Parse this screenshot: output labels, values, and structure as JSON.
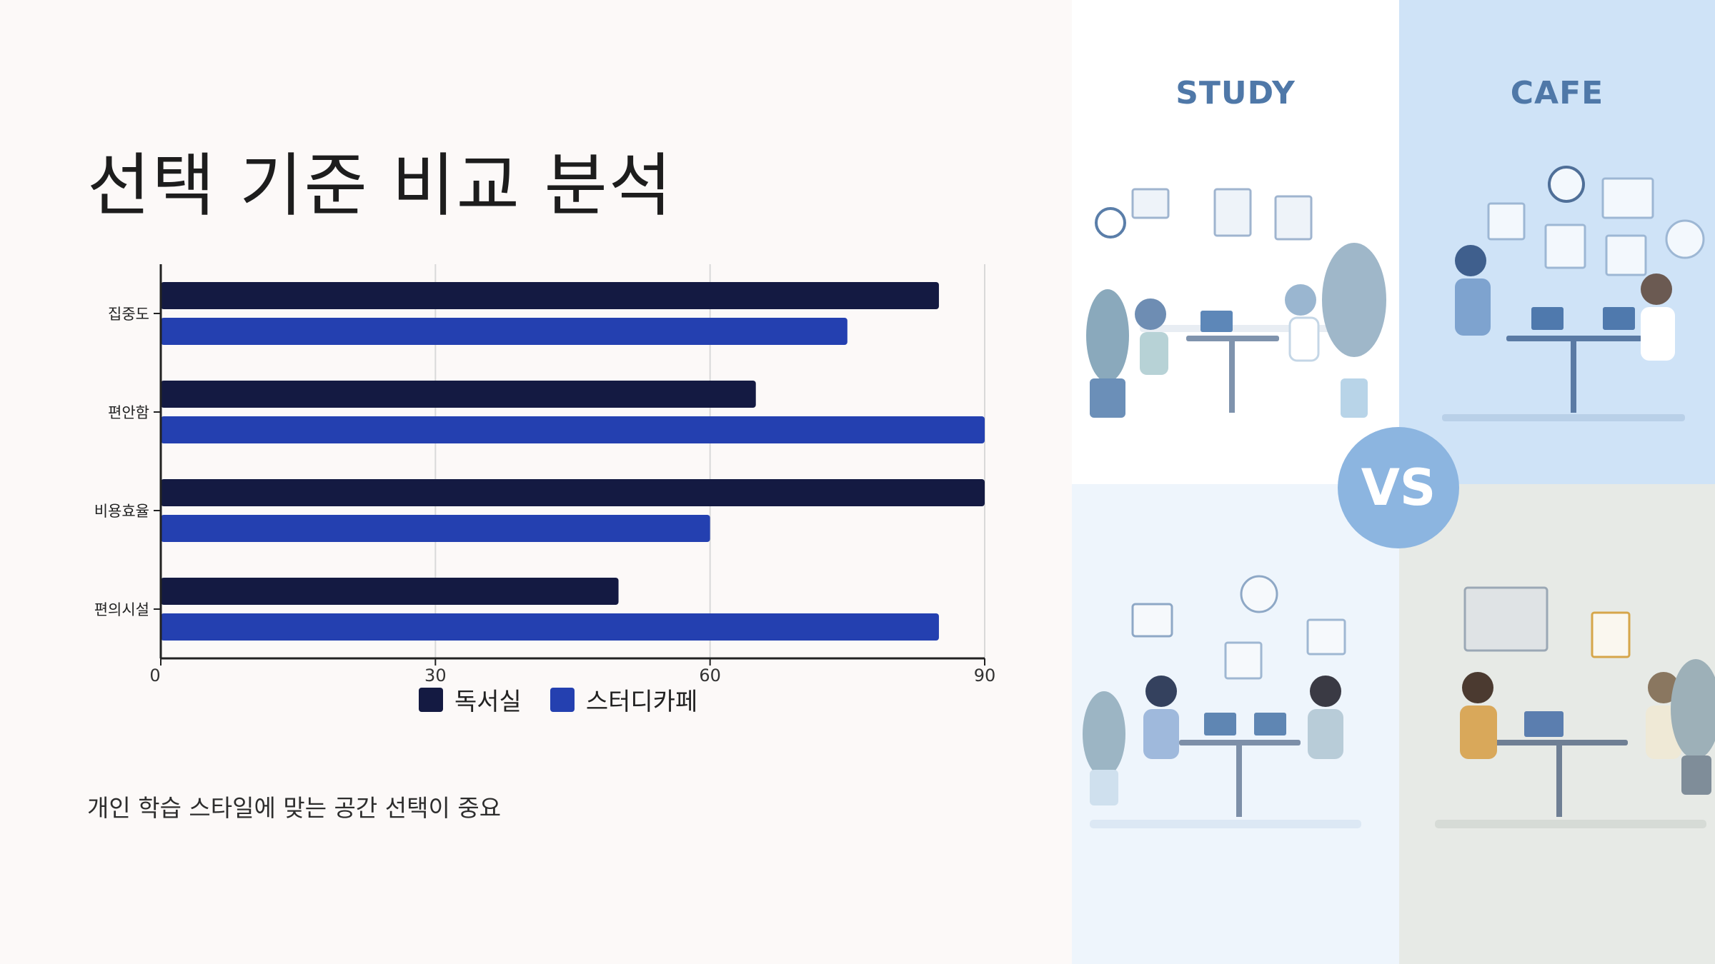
{
  "title": "선택 기준 비교 분석",
  "subtitle": "개인 학습 스타일에 맞는 공간 선택이 중요",
  "panels": {
    "study_title": "STUDY",
    "cafe_title": "CAFE",
    "vs_label": "VS"
  },
  "colors": {
    "reading_room": "#141a42",
    "study_cafe": "#2440b0",
    "grid": "#d9d9d9",
    "axis": "#222222"
  },
  "chart_data": {
    "type": "bar",
    "orientation": "horizontal",
    "categories": [
      "집중도",
      "편안함",
      "비용효율",
      "편의시설"
    ],
    "series": [
      {
        "name": "독서실",
        "values": [
          85,
          65,
          90,
          50
        ]
      },
      {
        "name": "스터디카페",
        "values": [
          75,
          90,
          60,
          85
        ]
      }
    ],
    "x_ticks": [
      "0",
      "30",
      "60",
      "90"
    ],
    "xlim": [
      0,
      90
    ],
    "grid": true,
    "legend": "bottom-center"
  }
}
